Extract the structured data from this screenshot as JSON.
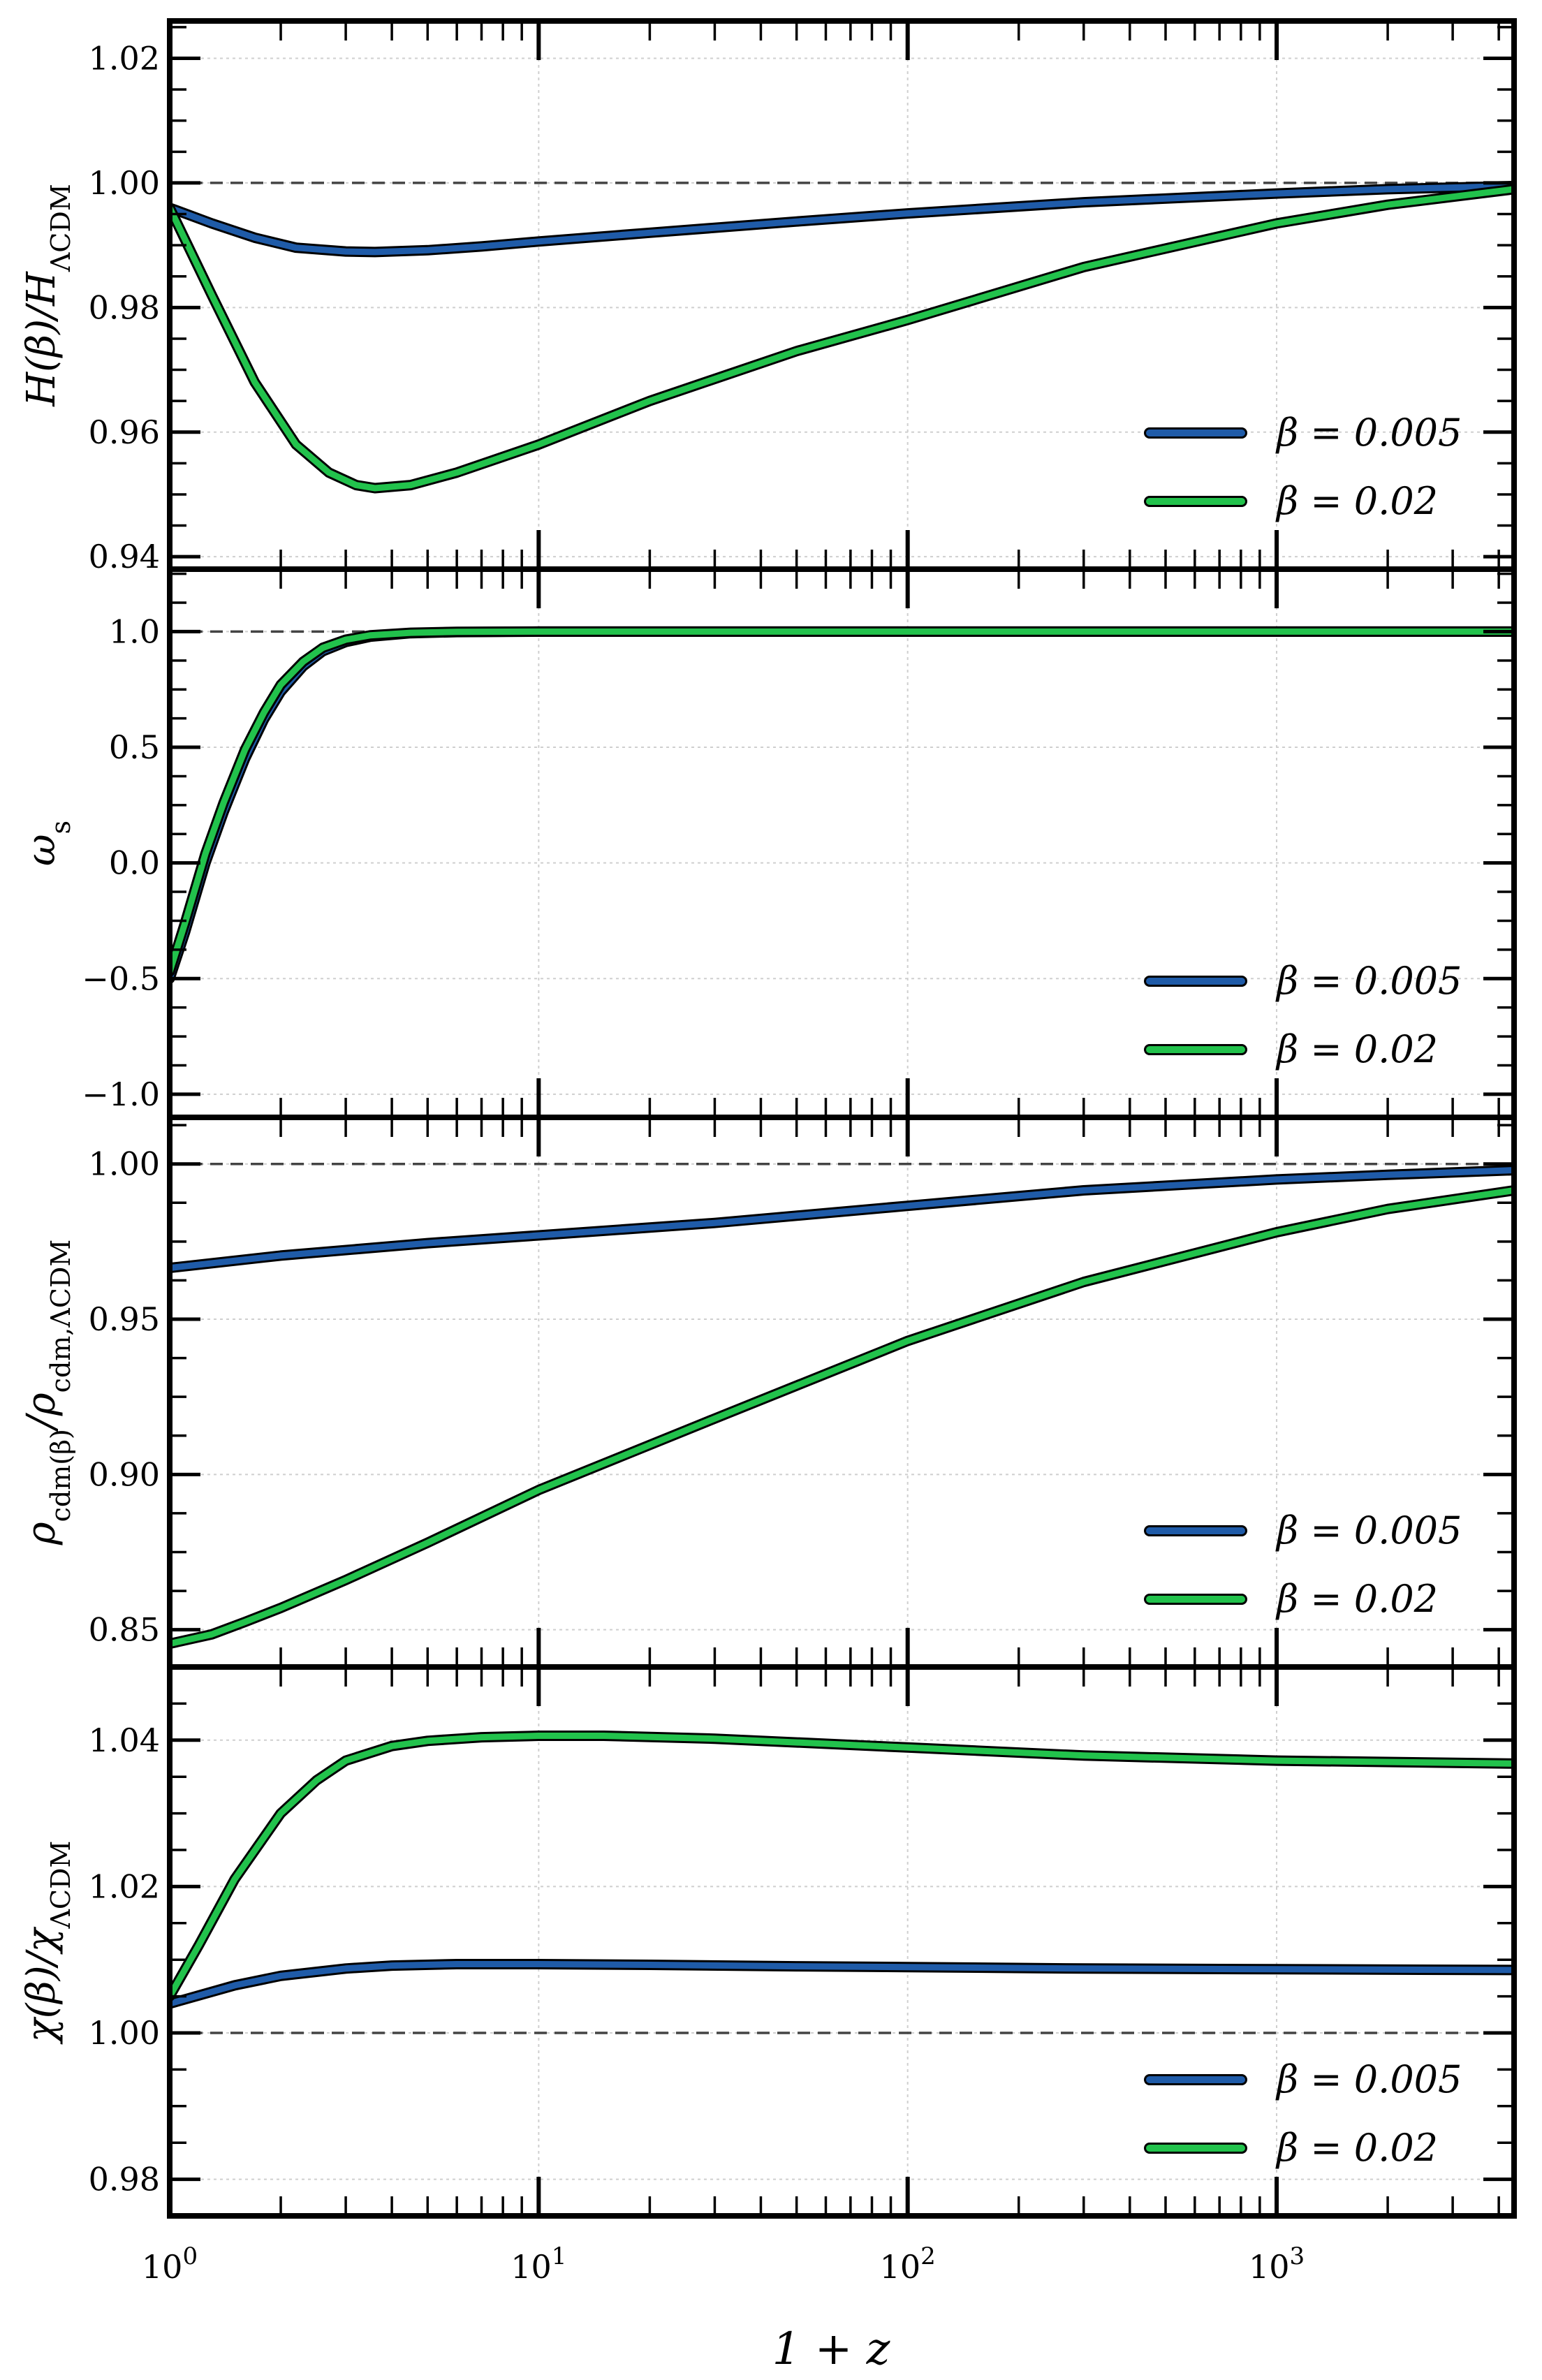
{
  "chart_data": [
    {
      "type": "line",
      "ylabel": "H(β)/H_ΛCDM",
      "xscale": "log",
      "xlim": [
        1,
        4400
      ],
      "ylim": [
        0.938,
        1.026
      ],
      "yticks": [
        0.94,
        0.96,
        0.98,
        1.0,
        1.02
      ],
      "ytick_labels": [
        "0.94",
        "0.96",
        "0.98",
        "1.00",
        "1.02"
      ],
      "reference_line": 1.0,
      "legend": "lower-right",
      "grid": true,
      "series": [
        {
          "name": "β = 0.005",
          "color": "#1f5ba8",
          "x": [
            1,
            1.3,
            1.7,
            2.2,
            3,
            3.6,
            5,
            7,
            10,
            20,
            50,
            100,
            300,
            1000,
            2000,
            4400
          ],
          "y": [
            0.996,
            0.9935,
            0.9912,
            0.9896,
            0.989,
            0.9889,
            0.9892,
            0.9898,
            0.9906,
            0.992,
            0.9938,
            0.9951,
            0.9969,
            0.9983,
            0.999,
            0.9995
          ]
        },
        {
          "name": "β = 0.02",
          "color": "#22c24c",
          "x": [
            1,
            1.3,
            1.7,
            2.2,
            2.7,
            3.2,
            3.6,
            4.5,
            6,
            10,
            20,
            50,
            100,
            300,
            1000,
            2000,
            4400
          ],
          "y": [
            0.996,
            0.982,
            0.968,
            0.958,
            0.9535,
            0.9515,
            0.951,
            0.9515,
            0.9535,
            0.958,
            0.965,
            0.973,
            0.978,
            0.9865,
            0.9935,
            0.9965,
            0.999
          ]
        }
      ]
    },
    {
      "type": "line",
      "ylabel": "ω_s",
      "xscale": "log",
      "xlim": [
        1,
        4400
      ],
      "ylim": [
        -1.1,
        1.27
      ],
      "yticks": [
        -1.0,
        -0.5,
        0.0,
        0.5,
        1.0
      ],
      "ytick_labels": [
        "−1.0",
        "−0.5",
        "0.0",
        "0.5",
        "1.0"
      ],
      "reference_line": 1.0,
      "legend": "lower-right",
      "grid": true,
      "series": [
        {
          "name": "β = 0.005",
          "color": "#1f5ba8",
          "x": [
            1,
            1.1,
            1.25,
            1.4,
            1.6,
            1.8,
            2.0,
            2.3,
            2.6,
            3.0,
            3.5,
            4.5,
            6,
            10,
            100,
            4400
          ],
          "y": [
            -0.5,
            -0.3,
            0.0,
            0.22,
            0.45,
            0.62,
            0.74,
            0.85,
            0.915,
            0.955,
            0.978,
            0.993,
            0.998,
            1.0,
            1.0,
            1.0
          ]
        },
        {
          "name": "β = 0.02",
          "color": "#22c24c",
          "x": [
            1,
            1.1,
            1.25,
            1.4,
            1.6,
            1.8,
            2.0,
            2.3,
            2.6,
            3.0,
            3.5,
            4.5,
            6,
            10,
            100,
            4400
          ],
          "y": [
            -0.47,
            -0.26,
            0.04,
            0.26,
            0.49,
            0.65,
            0.77,
            0.87,
            0.93,
            0.965,
            0.984,
            0.995,
            0.999,
            1.0,
            1.0,
            1.0
          ]
        }
      ]
    },
    {
      "type": "line",
      "ylabel": "ρ_cdm(β)/ρ_cdm,ΛCDM",
      "xscale": "log",
      "xlim": [
        1,
        4400
      ],
      "ylim": [
        0.838,
        1.015
      ],
      "yticks": [
        0.85,
        0.9,
        0.95,
        1.0
      ],
      "ytick_labels": [
        "0.85",
        "0.90",
        "0.95",
        "1.00"
      ],
      "reference_line": 1.0,
      "legend": "lower-right",
      "grid": true,
      "series": [
        {
          "name": "β = 0.005",
          "color": "#1f5ba8",
          "x": [
            1,
            2,
            5,
            10,
            30,
            100,
            300,
            1000,
            2000,
            4400
          ],
          "y": [
            0.9665,
            0.9705,
            0.9745,
            0.977,
            0.981,
            0.9865,
            0.9915,
            0.995,
            0.9965,
            0.998
          ]
        },
        {
          "name": "β = 0.02",
          "color": "#22c24c",
          "x": [
            1,
            1.3,
            1.6,
            2,
            3,
            5,
            10,
            30,
            100,
            300,
            1000,
            2000,
            4400
          ],
          "y": [
            0.8455,
            0.8485,
            0.8525,
            0.857,
            0.866,
            0.878,
            0.895,
            0.918,
            0.943,
            0.962,
            0.978,
            0.9855,
            0.9915
          ]
        }
      ]
    },
    {
      "type": "line",
      "ylabel": "χ(β)/χ_ΛCDM",
      "xscale": "log",
      "xlim": [
        1,
        4400
      ],
      "ylim": [
        0.975,
        1.05
      ],
      "yticks": [
        0.98,
        1.0,
        1.02,
        1.04
      ],
      "ytick_labels": [
        "0.98",
        "1.00",
        "1.02",
        "1.04"
      ],
      "reference_line": 1.0,
      "legend": "lower-right",
      "grid": true,
      "series": [
        {
          "name": "β = 0.005",
          "color": "#1f5ba8",
          "x": [
            1,
            1.5,
            2,
            3,
            4,
            6,
            10,
            20,
            50,
            100,
            300,
            1000,
            4400
          ],
          "y": [
            1.004,
            1.0065,
            1.0078,
            1.0088,
            1.0092,
            1.0094,
            1.0094,
            1.0093,
            1.0091,
            1.009,
            1.0088,
            1.0087,
            1.0086
          ]
        },
        {
          "name": "β = 0.02",
          "color": "#22c24c",
          "x": [
            1,
            1.2,
            1.5,
            2,
            2.5,
            3,
            4,
            5,
            7,
            10,
            15,
            30,
            100,
            300,
            1000,
            4400
          ],
          "y": [
            1.005,
            1.012,
            1.021,
            1.03,
            1.0345,
            1.0372,
            1.0392,
            1.0399,
            1.0404,
            1.0406,
            1.0406,
            1.0402,
            1.039,
            1.0379,
            1.0372,
            1.0368
          ]
        }
      ]
    }
  ],
  "xlabel": "1 + z",
  "xtick_labels": [
    {
      "value": 1,
      "base": "10",
      "exp": "0"
    },
    {
      "value": 10,
      "base": "10",
      "exp": "1"
    },
    {
      "value": 100,
      "base": "10",
      "exp": "2"
    },
    {
      "value": 1000,
      "base": "10",
      "exp": "3"
    }
  ]
}
